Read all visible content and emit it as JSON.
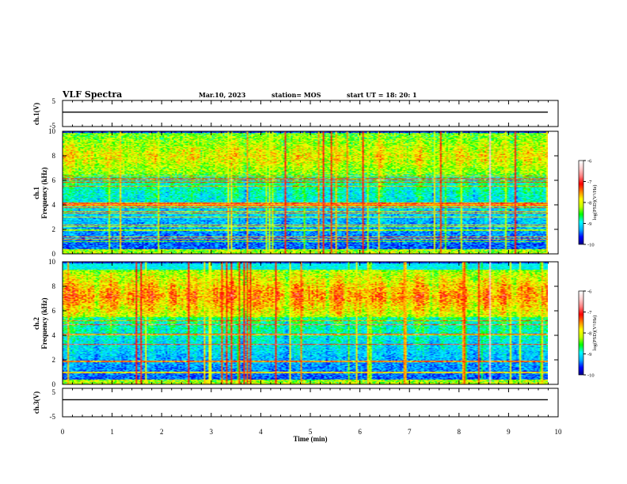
{
  "header": {
    "title": "VLF Spectra",
    "date": "Mar.10, 2023",
    "station": "station= MOS",
    "start": "start  UT  =   18: 20: 1"
  },
  "colors": {
    "scale": [
      "#000080",
      "#0000ff",
      "#00b0ff",
      "#00ffff",
      "#00ff00",
      "#c8ff00",
      "#ffff00",
      "#ff8000",
      "#ff0000",
      "#ff8080",
      "#ffd0d0",
      "#ffffff"
    ]
  },
  "chart_data": [
    {
      "type": "line",
      "name": "ch1-waveform",
      "ylabel": "ch.1(V)",
      "ylim": [
        -5,
        5
      ],
      "yticks": [
        "5",
        "-5"
      ],
      "x": [
        0,
        10
      ],
      "y": [
        0.5,
        0.5
      ]
    },
    {
      "type": "heatmap",
      "name": "ch1-spectrogram",
      "ylabel": "ch.1\nFrequency (kHz)",
      "ylim": [
        0,
        10
      ],
      "yticks": [
        "0",
        "2",
        "4",
        "6",
        "8",
        "10"
      ],
      "xlim": [
        0,
        10
      ],
      "colorbar": {
        "label": "log(PSD)(V²/Hz)",
        "range": [
          -10,
          -6
        ],
        "ticks": [
          "-6",
          "-7",
          "-8",
          "-9",
          "-10"
        ]
      },
      "intense_band_khz": [
        6.5,
        9.5
      ]
    },
    {
      "type": "heatmap",
      "name": "ch2-spectrogram",
      "ylabel": "ch.2\nFrequency (kHz)",
      "ylim": [
        0,
        10
      ],
      "yticks": [
        "0",
        "2",
        "4",
        "6",
        "8",
        "10"
      ],
      "xlim": [
        0,
        10
      ],
      "colorbar": {
        "label": "log(PSD)(V²/Hz)",
        "range": [
          -10,
          -6
        ],
        "ticks": [
          "-6",
          "-7",
          "-8",
          "-9",
          "-10"
        ]
      },
      "intense_band_khz": [
        5.5,
        9.0
      ]
    },
    {
      "type": "line",
      "name": "ch3-waveform",
      "ylabel": "ch.3(V)",
      "ylim": [
        -5,
        5
      ],
      "yticks": [
        "5",
        "-5"
      ],
      "x": [
        0,
        10
      ],
      "y": [
        1.0,
        1.0
      ]
    }
  ],
  "xaxis": {
    "label": "Time  (min)",
    "ticks": [
      "0",
      "1",
      "2",
      "3",
      "4",
      "5",
      "6",
      "7",
      "8",
      "9",
      "10"
    ],
    "xlim": [
      0,
      10
    ]
  }
}
